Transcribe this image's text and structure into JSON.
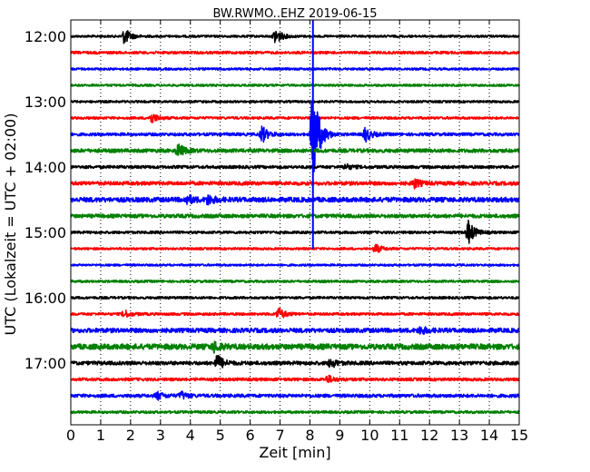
{
  "chart_data": {
    "type": "line",
    "title": "BW.RWMO..EHZ 2019-06-15",
    "xlabel": "Zeit  [min]",
    "ylabel": "UTC (Lokalzeit = UTC + 02:00)",
    "xlim": [
      0,
      15
    ],
    "x_ticks": [
      "0",
      "1",
      "2",
      "3",
      "4",
      "5",
      "6",
      "7",
      "8",
      "9",
      "10",
      "11",
      "12",
      "13",
      "14",
      "15"
    ],
    "y_ticks": [
      "12:00",
      "13:00",
      "14:00",
      "15:00",
      "16:00",
      "17:00"
    ],
    "grid": "vertical dotted",
    "trace_colors": [
      "#000000",
      "#ff0000",
      "#0000ff",
      "#008000"
    ],
    "traces": [
      {
        "start": "12:00",
        "noise": 1.2,
        "events": [
          {
            "t": 1.8,
            "amp": 9
          },
          {
            "t": 6.85,
            "amp": 9
          }
        ]
      },
      {
        "start": "12:15",
        "noise": 1.4,
        "events": []
      },
      {
        "start": "12:30",
        "noise": 1.2,
        "events": []
      },
      {
        "start": "12:45",
        "noise": 1.2,
        "events": []
      },
      {
        "start": "13:00",
        "noise": 1.2,
        "events": []
      },
      {
        "start": "13:15",
        "noise": 1.3,
        "events": [
          {
            "t": 2.7,
            "amp": 6
          }
        ]
      },
      {
        "start": "13:30",
        "noise": 1.6,
        "events": [
          {
            "t": 6.4,
            "amp": 9
          },
          {
            "t": 8.1,
            "amp": 60
          },
          {
            "t": 9.85,
            "amp": 8
          }
        ]
      },
      {
        "start": "13:45",
        "noise": 2.0,
        "events": [
          {
            "t": 3.6,
            "amp": 7
          }
        ]
      },
      {
        "start": "14:00",
        "noise": 1.6,
        "events": [
          {
            "t": 9.2,
            "amp": 3
          }
        ]
      },
      {
        "start": "14:15",
        "noise": 2.0,
        "events": [
          {
            "t": 11.5,
            "amp": 5
          }
        ]
      },
      {
        "start": "14:30",
        "noise": 2.6,
        "events": [
          {
            "t": 3.9,
            "amp": 5
          },
          {
            "t": 4.6,
            "amp": 5
          }
        ]
      },
      {
        "start": "14:45",
        "noise": 2.0,
        "events": []
      },
      {
        "start": "15:00",
        "noise": 1.4,
        "events": [
          {
            "t": 13.3,
            "amp": 13
          }
        ]
      },
      {
        "start": "15:15",
        "noise": 1.2,
        "events": [
          {
            "t": 10.2,
            "amp": 5
          }
        ]
      },
      {
        "start": "15:30",
        "noise": 1.1,
        "events": []
      },
      {
        "start": "15:45",
        "noise": 1.3,
        "events": []
      },
      {
        "start": "16:00",
        "noise": 1.3,
        "events": []
      },
      {
        "start": "16:15",
        "noise": 1.4,
        "events": [
          {
            "t": 1.8,
            "amp": 4
          },
          {
            "t": 6.95,
            "amp": 7
          }
        ]
      },
      {
        "start": "16:30",
        "noise": 2.4,
        "events": [
          {
            "t": 11.7,
            "amp": 4
          }
        ]
      },
      {
        "start": "16:45",
        "noise": 3.0,
        "events": [
          {
            "t": 4.8,
            "amp": 5
          }
        ]
      },
      {
        "start": "17:00",
        "noise": 2.0,
        "events": [
          {
            "t": 4.9,
            "amp": 9
          },
          {
            "t": 8.7,
            "amp": 5
          }
        ]
      },
      {
        "start": "17:15",
        "noise": 1.6,
        "events": [
          {
            "t": 8.6,
            "amp": 4
          }
        ]
      },
      {
        "start": "17:30",
        "noise": 1.8,
        "events": [
          {
            "t": 2.9,
            "amp": 4
          },
          {
            "t": 3.7,
            "amp": 4
          }
        ]
      },
      {
        "start": "17:45",
        "noise": 1.4,
        "events": []
      }
    ],
    "vertical_spike": {
      "t": 8.1,
      "from": "12:00",
      "to": "15:15",
      "color": "#0000ff"
    }
  }
}
